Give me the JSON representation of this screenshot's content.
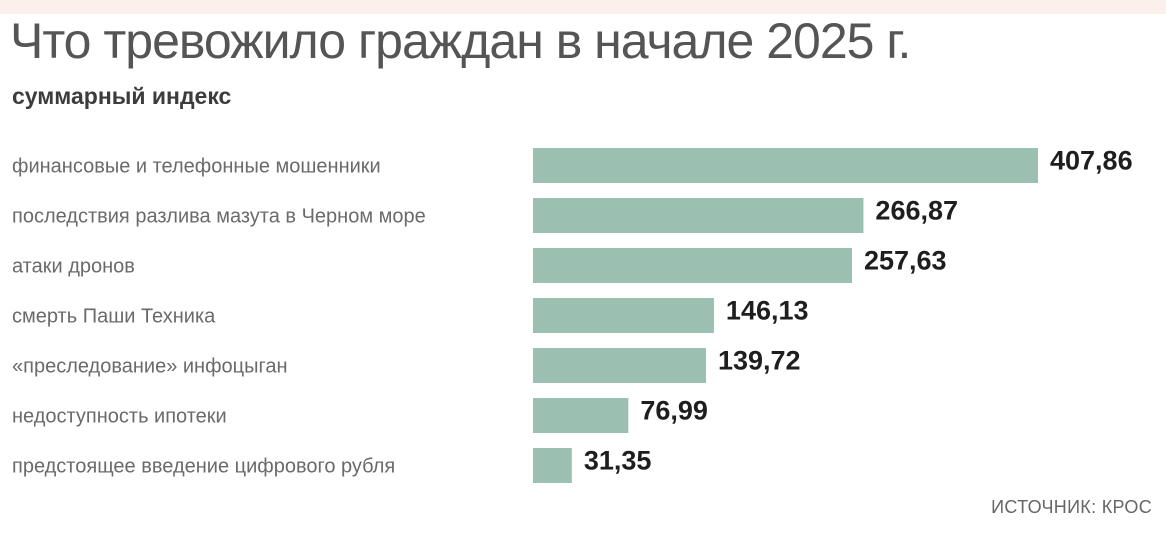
{
  "title": "Что тревожило граждан в начале 2025 г.",
  "subtitle": "суммарный индекс",
  "source": "ИСТОЧНИК: КРОС",
  "colors": {
    "bar": "#9bbfb0",
    "top_band": "#fbf1ea"
  },
  "chart_data": {
    "type": "bar",
    "orientation": "horizontal",
    "categories": [
      "финансовые и телефонные мошенники",
      "последствия разлива мазута в Черном море",
      "атаки дронов",
      "смерть Паши Техника",
      "«преследование» инфоцыган",
      "недоступность ипотеки",
      "предстоящее введение цифрового рубля"
    ],
    "values": [
      407.86,
      266.87,
      257.63,
      146.13,
      139.72,
      76.99,
      31.35
    ],
    "value_labels": [
      "407,86",
      "266,87",
      "257,63",
      "146,13",
      "139,72",
      "76,99",
      "31,35"
    ],
    "title": "Что тревожило граждан в начале 2025 г.",
    "subtitle": "суммарный индекс",
    "xlim": [
      0,
      407.86
    ],
    "grid": false,
    "legend": "none"
  }
}
